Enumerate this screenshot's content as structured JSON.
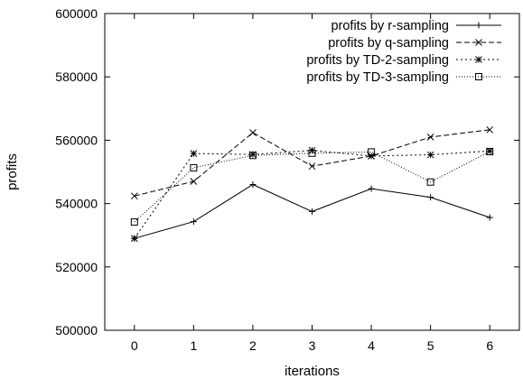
{
  "chart_data": {
    "type": "line",
    "xlabel": "iterations",
    "ylabel": "profits",
    "xlim": [
      -0.5,
      6.5
    ],
    "ylim": [
      500000,
      600000
    ],
    "xticks": [
      0,
      1,
      2,
      3,
      4,
      5,
      6
    ],
    "yticks": [
      500000,
      520000,
      540000,
      560000,
      580000,
      600000
    ],
    "x": [
      0,
      1,
      2,
      3,
      4,
      5,
      6
    ],
    "grid": false,
    "legend_position": "top-right",
    "series": [
      {
        "name": "profits by r-sampling",
        "values": [
          529000,
          534300,
          546000,
          537500,
          544700,
          542000,
          535600
        ],
        "line": "solid",
        "marker": "plus",
        "color": "#000000"
      },
      {
        "name": "profits by q-sampling",
        "values": [
          542400,
          547000,
          562400,
          551800,
          555000,
          561000,
          563300
        ],
        "line": "dashed",
        "marker": "cross",
        "color": "#000000"
      },
      {
        "name": "profits by TD-2-sampling",
        "values": [
          529000,
          555800,
          555500,
          556800,
          555000,
          555400,
          556600
        ],
        "line": "dotted",
        "marker": "star",
        "color": "#000000"
      },
      {
        "name": "profits by TD-3-sampling",
        "values": [
          534200,
          551300,
          555200,
          555900,
          556300,
          546800,
          556400
        ],
        "line": "fine-dotted",
        "marker": "square",
        "color": "#000000"
      }
    ]
  }
}
